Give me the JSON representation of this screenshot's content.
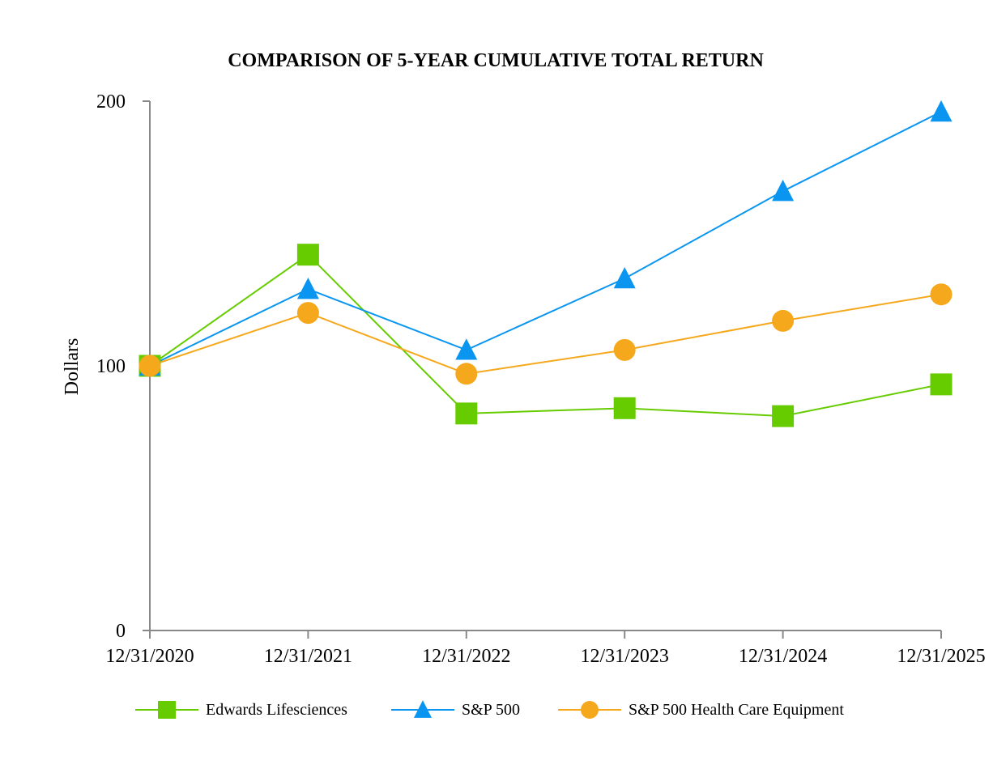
{
  "chart_data": {
    "type": "line",
    "title": "COMPARISON OF 5-YEAR CUMULATIVE TOTAL RETURN",
    "xlabel": "",
    "ylabel": "Dollars",
    "categories": [
      "12/31/2020",
      "12/31/2021",
      "12/31/2022",
      "12/31/2023",
      "12/31/2024",
      "12/31/2025"
    ],
    "ylim": [
      0,
      200
    ],
    "yticks": [
      "0",
      "100",
      "200"
    ],
    "grid": false,
    "legend_position": "bottom",
    "series": [
      {
        "name": "Edwards Lifesciences",
        "values": [
          100,
          142,
          82,
          84,
          81,
          93
        ],
        "color": "#66cc00",
        "marker": "square"
      },
      {
        "name": "S&P 500",
        "values": [
          100,
          129,
          106,
          133,
          166,
          196
        ],
        "color": "#0a96f0",
        "marker": "triangle"
      },
      {
        "name": "S&P 500 Health Care Equipment",
        "values": [
          100,
          120,
          97,
          106,
          117,
          127
        ],
        "color": "#f5a81c",
        "marker": "circle"
      }
    ]
  }
}
